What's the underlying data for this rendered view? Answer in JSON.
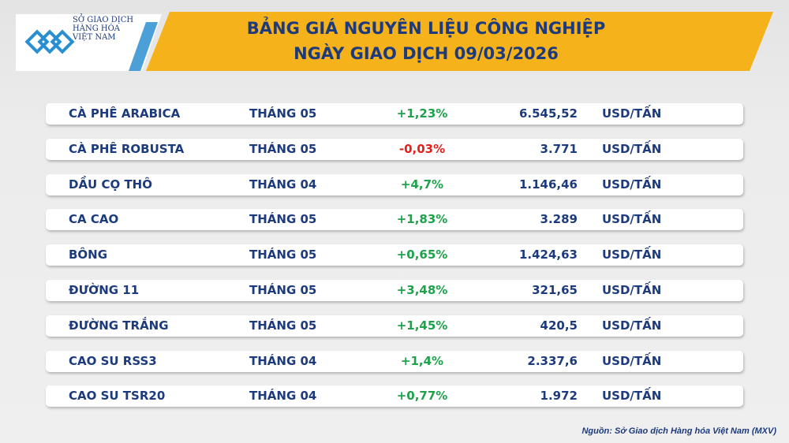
{
  "logo": {
    "lines": [
      "SỞ GIAO DỊCH",
      "HÀNG HÓA",
      "VIỆT NAM"
    ]
  },
  "header": {
    "title_lines": [
      "BẢNG GIÁ NGUYÊN LIỆU CÔNG NGHIỆP",
      "NGÀY GIAO DỊCH 09/03/2026"
    ]
  },
  "table": {
    "rows": [
      [
        "CÀ PHÊ ARABICA",
        "THÁNG 05",
        "+1,23%",
        "6.545,52",
        "USD/TẤN"
      ],
      [
        "CÀ PHÊ ROBUSTA",
        "THÁNG 05",
        "-0,03%",
        "3.771",
        "USD/TẤN"
      ],
      [
        "DẦU CỌ THÔ",
        "THÁNG 04",
        "+4,7%",
        "1.146,46",
        "USD/TẤN"
      ],
      [
        "CA CAO",
        "THÁNG 05",
        "+1,83%",
        "3.289",
        "USD/TẤN"
      ],
      [
        "BÔNG",
        "THÁNG 05",
        "+0,65%",
        "1.424,63",
        "USD/TẤN"
      ],
      [
        "ĐƯỜNG 11",
        "THÁNG 05",
        "+3,48%",
        "321,65",
        "USD/TẤN"
      ],
      [
        "ĐƯỜNG TRẮNG",
        "THÁNG 05",
        "+1,45%",
        "420,5",
        "USD/TẤN"
      ],
      [
        "CAO SU RSS3",
        "THÁNG 04",
        "+1,4%",
        "2.337,6",
        "USD/TẤN"
      ],
      [
        "CAO SU TSR20",
        "THÁNG 04",
        "+0,77%",
        "1.972",
        "USD/TẤN"
      ]
    ]
  },
  "source": "Nguồn: Sở Giao dịch Hàng hóa Việt Nam (MXV)"
}
